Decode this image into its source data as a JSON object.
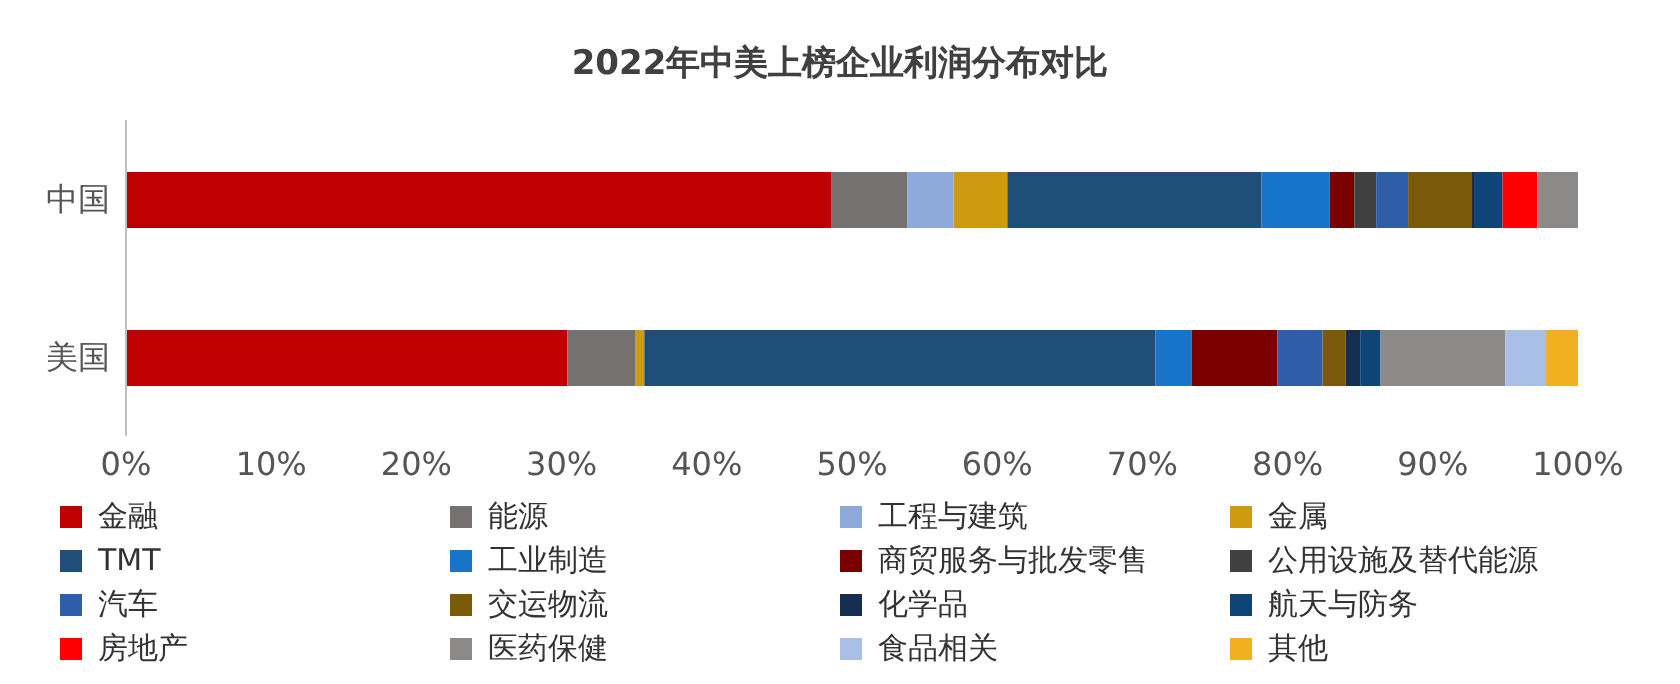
{
  "chart_data": {
    "type": "bar",
    "orientation": "horizontal",
    "stacked": true,
    "title": "2022年中美上榜企业利润分布对比",
    "categories": [
      "中国",
      "美国"
    ],
    "series": [
      {
        "name": "金融",
        "color": "#c00000",
        "values": [
          48.6,
          30.4
        ]
      },
      {
        "name": "能源",
        "color": "#767171",
        "values": [
          5.2,
          4.7
        ]
      },
      {
        "name": "工程与建筑",
        "color": "#8eaadb",
        "values": [
          3.2,
          0
        ]
      },
      {
        "name": "金属",
        "color": "#d09a10",
        "values": [
          3.7,
          0.6
        ]
      },
      {
        "name": "TMT",
        "color": "#1f4e79",
        "values": [
          17.5,
          35.2
        ]
      },
      {
        "name": "工业制造",
        "color": "#1874c8",
        "values": [
          4.7,
          2.5
        ]
      },
      {
        "name": "商贸服务与批发零售",
        "color": "#7a0000",
        "values": [
          1.7,
          5.9
        ]
      },
      {
        "name": "公用设施及替代能源",
        "color": "#404040",
        "values": [
          1.5,
          0
        ]
      },
      {
        "name": "汽车",
        "color": "#2f5ea8",
        "values": [
          2.2,
          3.1
        ]
      },
      {
        "name": "交运物流",
        "color": "#7a5a0a",
        "values": [
          4.4,
          1.6
        ]
      },
      {
        "name": "化学品",
        "color": "#152e4f",
        "values": [
          0.2,
          1.0
        ]
      },
      {
        "name": "航天与防务",
        "color": "#0d4578",
        "values": [
          1.9,
          1.4
        ]
      },
      {
        "name": "房地产",
        "color": "#ff0000",
        "values": [
          2.4,
          0
        ]
      },
      {
        "name": "医药保健",
        "color": "#8c8989",
        "values": [
          2.8,
          8.6
        ]
      },
      {
        "name": "食品相关",
        "color": "#a9bfe6",
        "values": [
          0,
          2.8
        ]
      },
      {
        "name": "其他",
        "color": "#f0b020",
        "values": [
          0,
          2.2
        ]
      }
    ],
    "xlim": [
      0,
      100
    ],
    "xticks": [
      {
        "value": 0,
        "label": "0%"
      },
      {
        "value": 10,
        "label": "10%"
      },
      {
        "value": 20,
        "label": "20%"
      },
      {
        "value": 30,
        "label": "30%"
      },
      {
        "value": 40,
        "label": "40%"
      },
      {
        "value": 50,
        "label": "50%"
      },
      {
        "value": 60,
        "label": "60%"
      },
      {
        "value": 70,
        "label": "70%"
      },
      {
        "value": 80,
        "label": "80%"
      },
      {
        "value": 90,
        "label": "90%"
      },
      {
        "value": 100,
        "label": "100%"
      }
    ],
    "legend": "bottom"
  }
}
